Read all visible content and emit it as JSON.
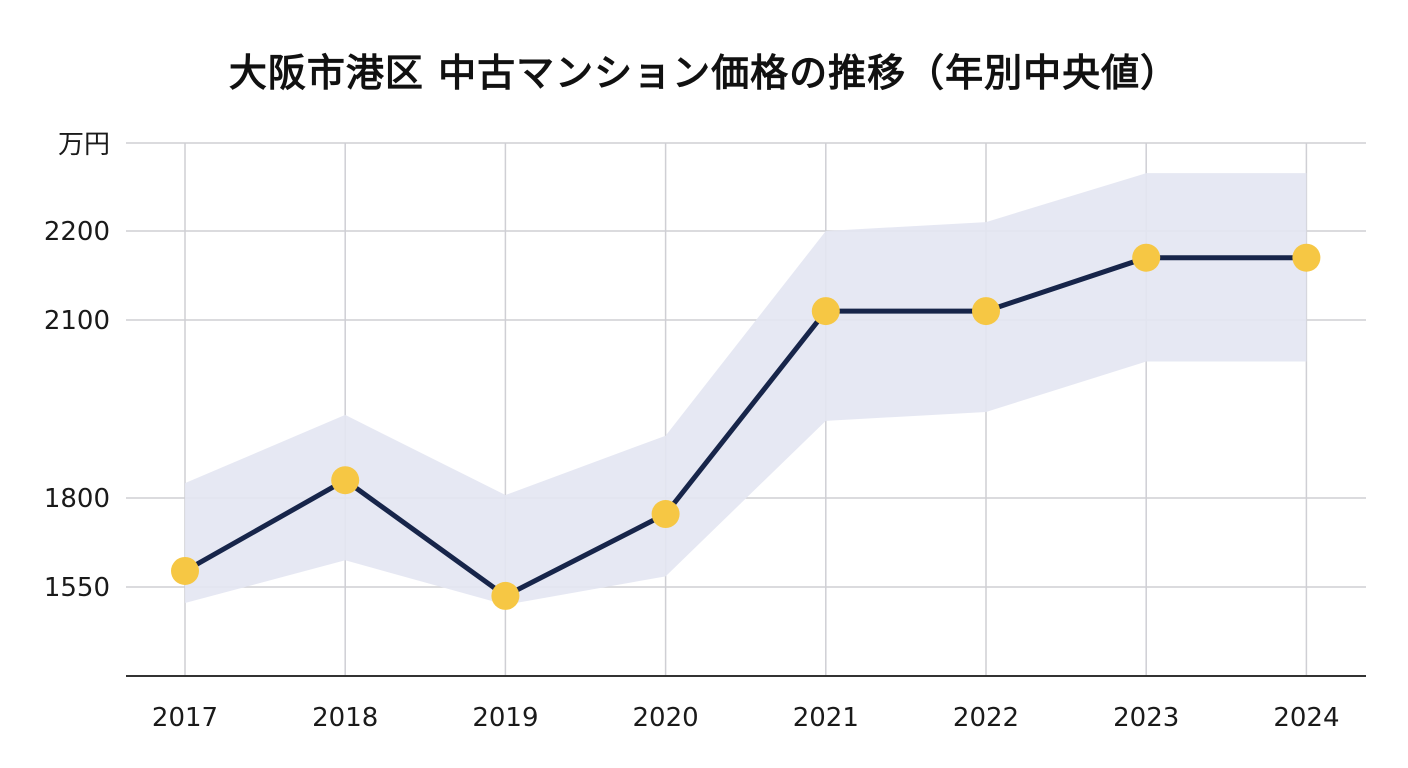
{
  "chart_data": {
    "type": "line",
    "title": "大阪市港区 中古マンション価格の推移（年別中央値）",
    "y_unit_label": "万円",
    "x": [
      "2017",
      "2018",
      "2019",
      "2020",
      "2021",
      "2022",
      "2023",
      "2024"
    ],
    "series": [
      {
        "values": [
          1595,
          1830,
          1525,
          1755,
          2110,
          2110,
          2170,
          2170
        ]
      }
    ],
    "band": {
      "lower": [
        1505,
        1625,
        1500,
        1580,
        1930,
        1945,
        2030,
        2030
      ],
      "upper": [
        1825,
        1940,
        1805,
        1905,
        2200,
        2210,
        2265,
        2265
      ]
    },
    "yticks": [
      1550,
      1800,
      2100,
      2200
    ],
    "y_scale_anchors": [
      1550,
      1800,
      2100,
      2200
    ],
    "grid": true,
    "legend": "none",
    "colors": {
      "line": "#17254a",
      "marker": "#f6c744",
      "band": "#e3e6f2",
      "grid": "#cfcfd4",
      "axis": "#333333"
    }
  }
}
